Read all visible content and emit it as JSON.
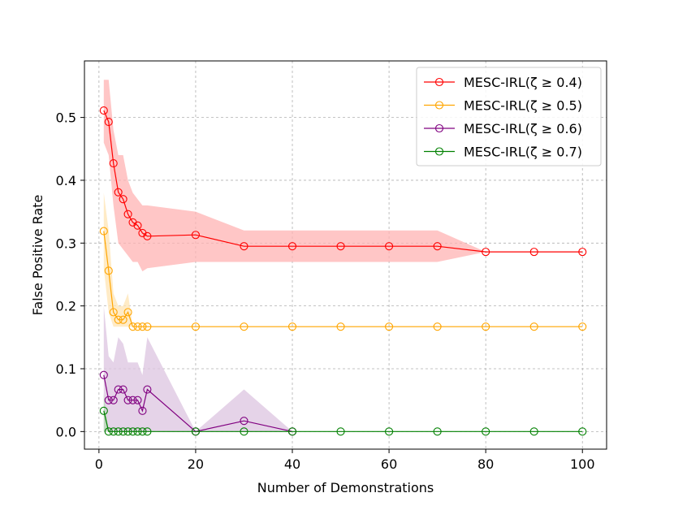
{
  "chart_data": {
    "type": "line",
    "title": "",
    "xlabel": "Number of Demonstrations",
    "ylabel": "False Positive Rate",
    "xlim": [
      -3,
      105
    ],
    "ylim": [
      -0.028,
      0.59
    ],
    "xticks": [
      0,
      20,
      40,
      60,
      80,
      100
    ],
    "xtick_labels": [
      "0",
      "20",
      "40",
      "60",
      "80",
      "100"
    ],
    "yticks": [
      0.0,
      0.1,
      0.2,
      0.3,
      0.4,
      0.5
    ],
    "ytick_labels": [
      "0.0",
      "0.1",
      "0.2",
      "0.3",
      "0.4",
      "0.5"
    ],
    "grid": true,
    "legend_position": "top-right",
    "series": [
      {
        "name": "MESC-IRL(ζ ≥ 0.4)",
        "color": "#ff0000",
        "band_color": "#ffb3b3",
        "x": [
          1,
          2,
          3,
          4,
          5,
          6,
          7,
          8,
          9,
          10,
          20,
          30,
          40,
          50,
          60,
          70,
          80,
          90,
          100
        ],
        "y": [
          0.511,
          0.493,
          0.427,
          0.381,
          0.37,
          0.346,
          0.333,
          0.328,
          0.316,
          0.311,
          0.313,
          0.295,
          0.295,
          0.295,
          0.295,
          0.295,
          0.286,
          0.286,
          0.286
        ],
        "lower": [
          0.46,
          0.44,
          0.36,
          0.3,
          0.29,
          0.28,
          0.27,
          0.27,
          0.255,
          0.26,
          0.27,
          0.27,
          0.27,
          0.27,
          0.27,
          0.27,
          0.286,
          0.286,
          0.286
        ],
        "upper": [
          0.56,
          0.56,
          0.48,
          0.44,
          0.44,
          0.4,
          0.38,
          0.37,
          0.36,
          0.36,
          0.35,
          0.32,
          0.32,
          0.32,
          0.32,
          0.32,
          0.286,
          0.286,
          0.286
        ]
      },
      {
        "name": "MESC-IRL(ζ ≥ 0.5)",
        "color": "#ffa500",
        "band_color": "#ffe4b3",
        "x": [
          1,
          2,
          3,
          4,
          5,
          6,
          7,
          8,
          9,
          10,
          20,
          30,
          40,
          50,
          60,
          70,
          80,
          90,
          100
        ],
        "y": [
          0.319,
          0.256,
          0.19,
          0.178,
          0.178,
          0.19,
          0.167,
          0.167,
          0.167,
          0.167,
          0.167,
          0.167,
          0.167,
          0.167,
          0.167,
          0.167,
          0.167,
          0.167,
          0.167
        ],
        "lower": [
          0.26,
          0.19,
          0.167,
          0.167,
          0.167,
          0.167,
          0.167,
          0.167,
          0.167,
          0.167,
          0.167,
          0.167,
          0.167,
          0.167,
          0.167,
          0.167,
          0.167,
          0.167,
          0.167
        ],
        "upper": [
          0.38,
          0.32,
          0.22,
          0.2,
          0.2,
          0.22,
          0.167,
          0.167,
          0.167,
          0.167,
          0.167,
          0.167,
          0.167,
          0.167,
          0.167,
          0.167,
          0.167,
          0.167,
          0.167
        ]
      },
      {
        "name": "MESC-IRL(ζ ≥ 0.6)",
        "color": "#800080",
        "band_color": "#dcc4e0",
        "x": [
          1,
          2,
          3,
          4,
          5,
          6,
          7,
          8,
          9,
          10,
          20,
          30,
          40
        ],
        "y": [
          0.09,
          0.05,
          0.05,
          0.067,
          0.067,
          0.05,
          0.05,
          0.05,
          0.033,
          0.067,
          0.0,
          0.017,
          0.0
        ],
        "lower": [
          0.0,
          0.0,
          0.0,
          0.0,
          0.0,
          0.0,
          0.0,
          0.0,
          0.0,
          0.0,
          0.0,
          0.0,
          0.0
        ],
        "upper": [
          0.2,
          0.12,
          0.11,
          0.15,
          0.14,
          0.11,
          0.11,
          0.11,
          0.09,
          0.15,
          0.0,
          0.067,
          0.0
        ]
      },
      {
        "name": "MESC-IRL(ζ ≥ 0.7)",
        "color": "#008000",
        "band_color": "#b3d9b3",
        "x": [
          1,
          2,
          3,
          4,
          5,
          6,
          7,
          8,
          9,
          10,
          20,
          30,
          40,
          50,
          60,
          70,
          80,
          90,
          100
        ],
        "y": [
          0.033,
          0.0,
          0.0,
          0.0,
          0.0,
          0.0,
          0.0,
          0.0,
          0.0,
          0.0,
          0.0,
          0.0,
          0.0,
          0.0,
          0.0,
          0.0,
          0.0,
          0.0,
          0.0
        ],
        "lower": [
          0.0,
          0.0,
          0.0,
          0.0,
          0.0,
          0.0,
          0.0,
          0.0,
          0.0,
          0.0,
          0.0,
          0.0,
          0.0,
          0.0,
          0.0,
          0.0,
          0.0,
          0.0,
          0.0
        ],
        "upper": [
          0.06,
          0.0,
          0.0,
          0.0,
          0.0,
          0.0,
          0.0,
          0.0,
          0.0,
          0.0,
          0.0,
          0.0,
          0.0,
          0.0,
          0.0,
          0.0,
          0.0,
          0.0,
          0.0
        ]
      }
    ]
  }
}
